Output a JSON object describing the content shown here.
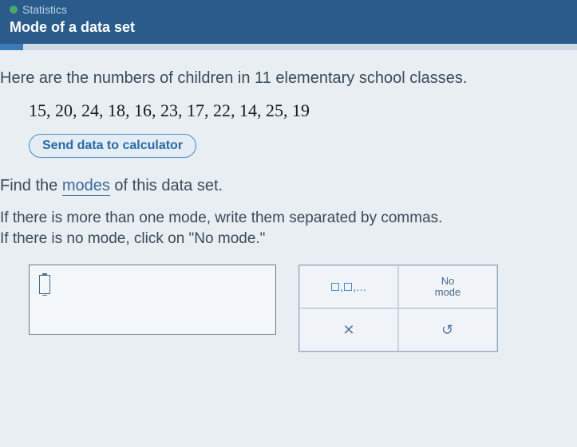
{
  "header": {
    "category": "Statistics",
    "topic": "Mode of a data set"
  },
  "progress": {
    "percent": 4,
    "bar_bg": "#cdd9e3",
    "fill": "#3a7bb8"
  },
  "question": {
    "intro": "Here are the numbers of children in 11 elementary school classes.",
    "data_values": [
      15,
      20,
      24,
      18,
      16,
      23,
      17,
      22,
      14,
      25,
      19
    ],
    "data_display": "15, 20, 24, 18, 16, 23, 17, 22, 14, 25, 19",
    "send_button": "Send data to calculator",
    "prompt_prefix": "Find the ",
    "prompt_link": "modes",
    "prompt_suffix": " of this data set.",
    "hint_line1": "If there is more than one mode, write them separated by commas.",
    "hint_line2": "If there is no mode, click on \"No mode.\""
  },
  "answer": {
    "input_value": ""
  },
  "tools": {
    "comma_list_label": "▢,▢,...",
    "no_mode_label": "No\nmode",
    "clear_label": "×",
    "undo_label": "↶"
  },
  "colors": {
    "header_bg": "#2a5b8a",
    "body_bg": "#e8eef2",
    "accent": "#4a8ac2",
    "text": "#3a4a5a",
    "link": "#3a6a9a",
    "dot": "#4aa86b"
  }
}
